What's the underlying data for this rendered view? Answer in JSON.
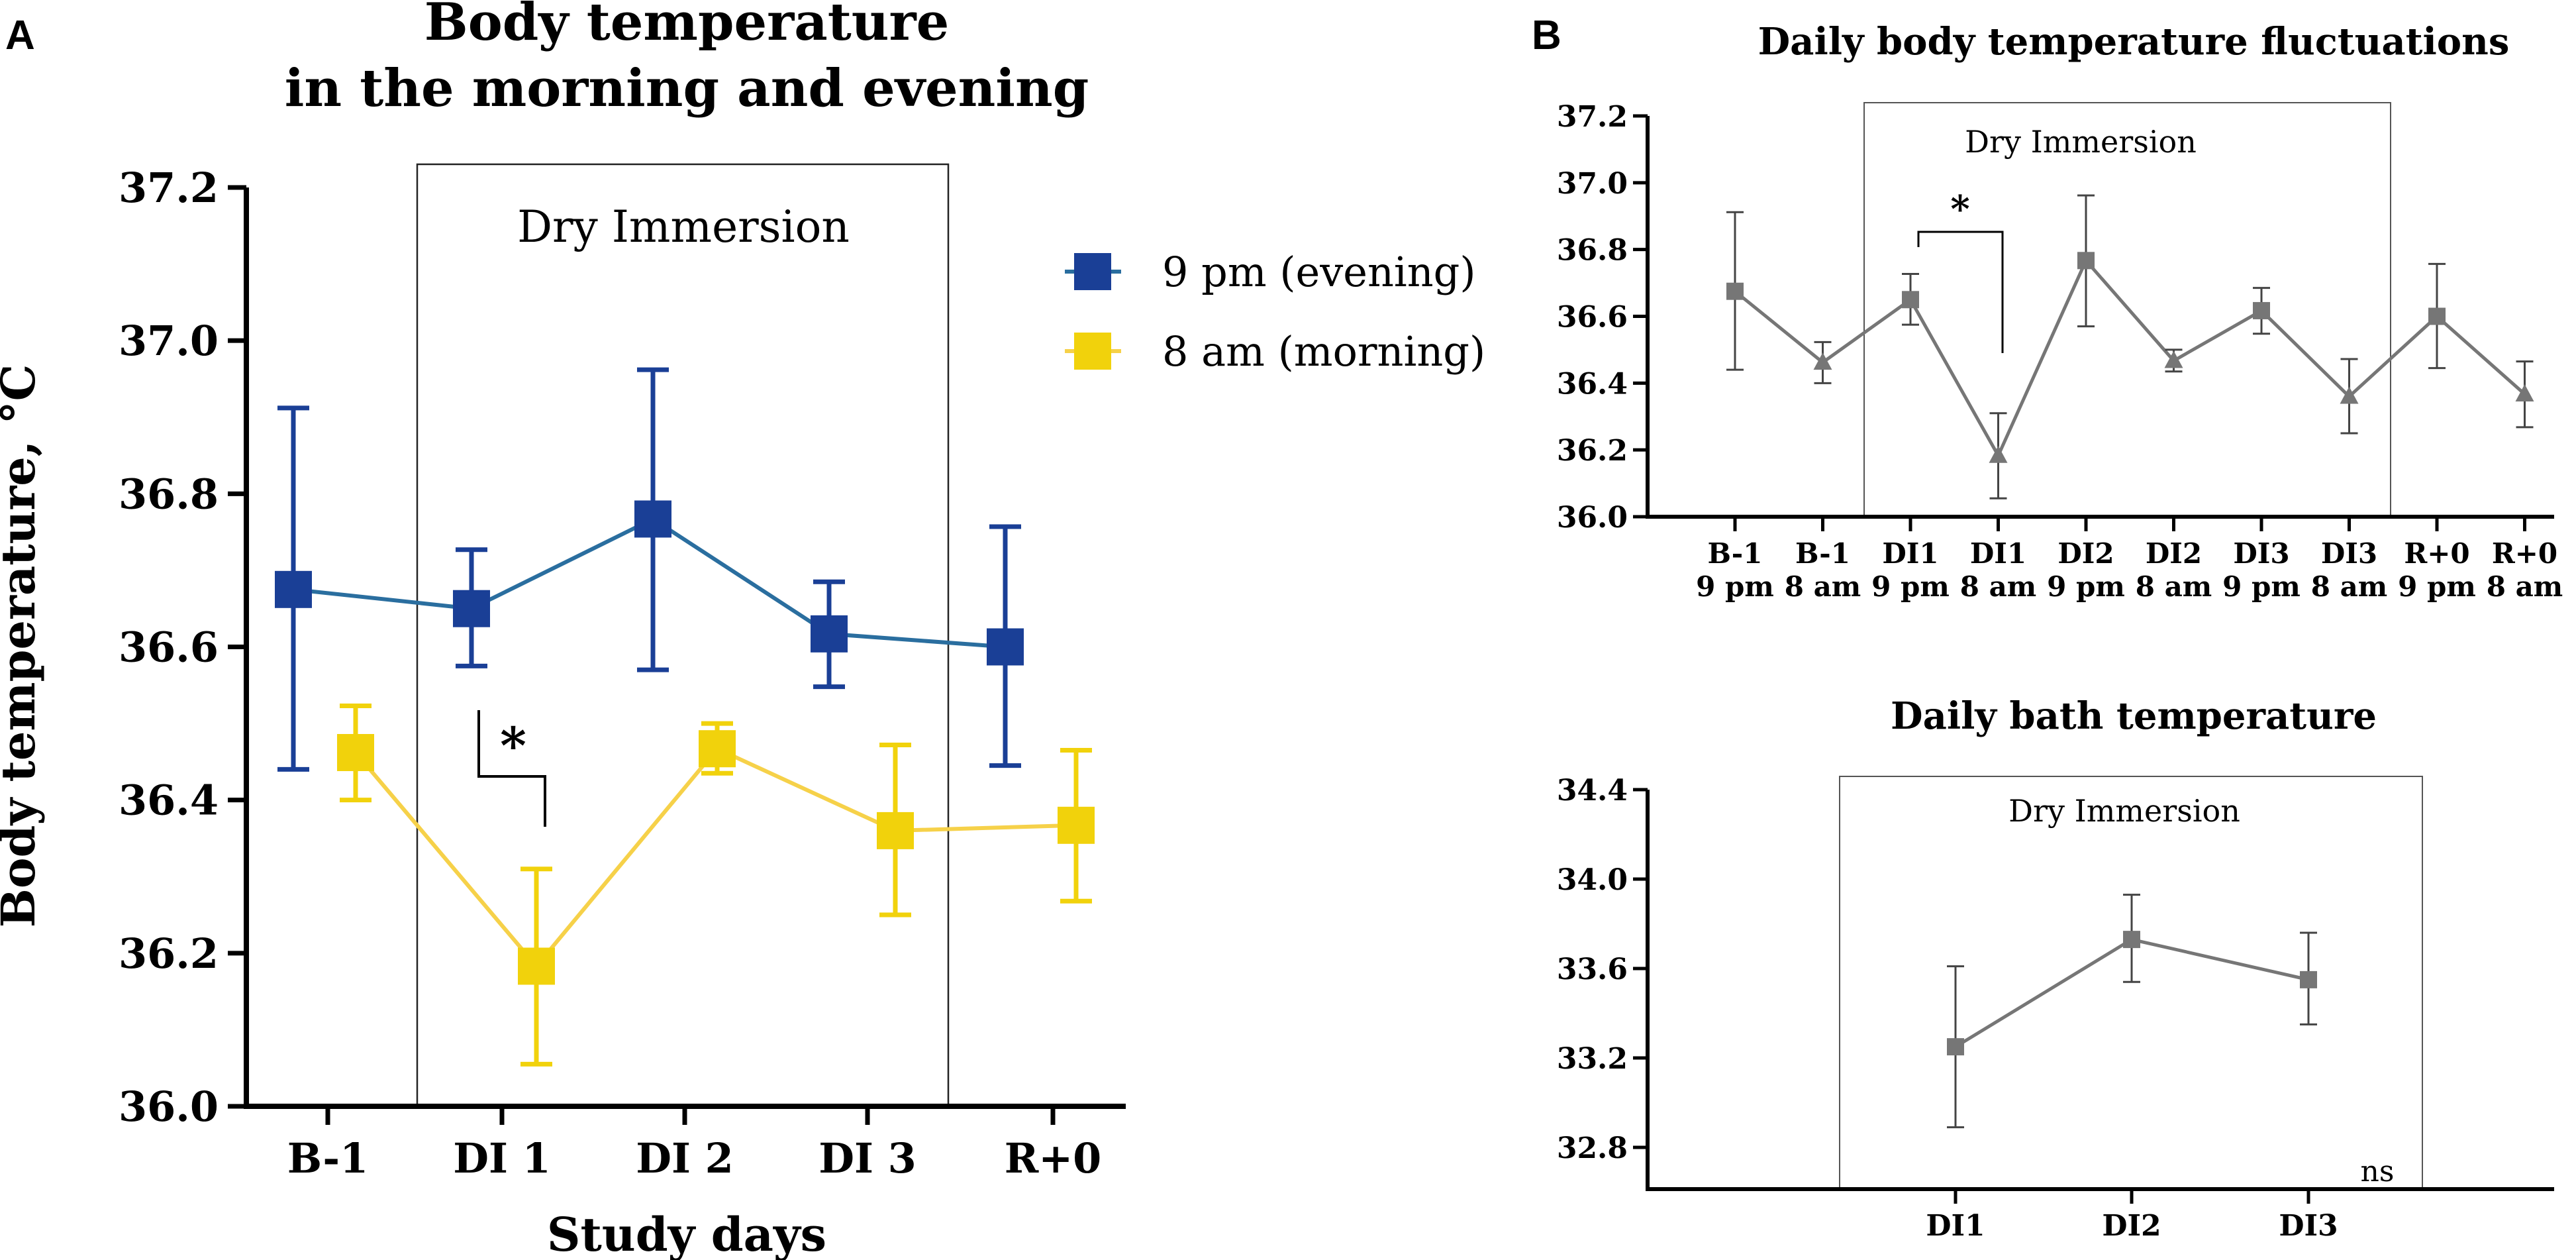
{
  "panels": {
    "A": {
      "letter": "A",
      "title_line1": "Body temperature",
      "title_line2": "in the morning and evening",
      "xlabel": "Study days",
      "ylabel": "Body temperature, °C",
      "box_label": "Dry Immersion",
      "significance": "*"
    },
    "B": {
      "letter": "B"
    }
  },
  "colors": {
    "evening": "#1a3f96",
    "evening_line": "#2a6e9f",
    "morning": "#f1d20c",
    "morning_line": "#f6d149",
    "gray": "#767676",
    "axis": "#000000"
  },
  "chart_data": [
    {
      "id": "A",
      "type": "line",
      "title": "Body temperature in the morning and evening",
      "xlabel": "Study days",
      "ylabel": "Body temperature, °C",
      "categories": [
        "B-1",
        "DI 1",
        "DI 2",
        "DI 3",
        "R+0"
      ],
      "ylim": [
        36.0,
        37.2
      ],
      "yticks": [
        "36.0",
        "36.2",
        "36.4",
        "36.6",
        "36.8",
        "37.0",
        "37.2"
      ],
      "legend_position": "top-right",
      "series": [
        {
          "name": "9 pm (evening)",
          "x": [
            0,
            1,
            2,
            3,
            4
          ],
          "values": [
            36.675,
            36.65,
            36.767,
            36.617,
            36.6
          ],
          "err_low": [
            36.44,
            36.575,
            36.57,
            36.548,
            36.445
          ],
          "err_high": [
            36.912,
            36.727,
            36.962,
            36.685,
            36.757
          ],
          "color_key": "evening"
        },
        {
          "name": "8 am (morning)",
          "x": [
            0.3,
            1.3,
            2.3,
            3.3,
            4.3
          ],
          "values": [
            36.462,
            36.183,
            36.467,
            36.36,
            36.367
          ],
          "err_low": [
            36.4,
            36.055,
            36.435,
            36.25,
            36.268
          ],
          "err_high": [
            36.523,
            36.31,
            36.5,
            36.472,
            36.465
          ],
          "color_key": "morning"
        }
      ],
      "annotations": [
        {
          "text": "Dry Immersion",
          "x_start": 0.7,
          "x_end": 3.7
        },
        {
          "text": "*",
          "between": [
            "DI 1 9 pm",
            "DI 1 8 am"
          ]
        }
      ]
    },
    {
      "id": "B_top",
      "type": "line",
      "title": "Daily body temperature fluctuations",
      "categories": [
        {
          "line1": "B-1",
          "line2": "9 pm"
        },
        {
          "line1": "B-1",
          "line2": "8 am"
        },
        {
          "line1": "DI1",
          "line2": "9 pm"
        },
        {
          "line1": "DI1",
          "line2": "8 am"
        },
        {
          "line1": "DI2",
          "line2": "9 pm"
        },
        {
          "line1": "DI2",
          "line2": "8 am"
        },
        {
          "line1": "DI3",
          "line2": "9 pm"
        },
        {
          "line1": "DI3",
          "line2": "8 am"
        },
        {
          "line1": "R+0",
          "line2": "9 pm"
        },
        {
          "line1": "R+0",
          "line2": "8 am"
        }
      ],
      "ylim": [
        36.0,
        37.2
      ],
      "yticks": [
        "36.0",
        "36.2",
        "36.4",
        "36.6",
        "36.8",
        "37.0",
        "37.2"
      ],
      "values": [
        36.675,
        36.462,
        36.65,
        36.183,
        36.767,
        36.467,
        36.617,
        36.36,
        36.6,
        36.367
      ],
      "err_low": [
        36.44,
        36.4,
        36.575,
        36.055,
        36.57,
        36.435,
        36.548,
        36.25,
        36.445,
        36.268
      ],
      "err_high": [
        36.912,
        36.523,
        36.727,
        36.31,
        36.962,
        36.5,
        36.685,
        36.472,
        36.757,
        36.465
      ],
      "markers": [
        "square",
        "triangle",
        "square",
        "triangle",
        "square",
        "triangle",
        "square",
        "triangle",
        "square",
        "triangle"
      ],
      "annotations": [
        {
          "text": "Dry Immersion",
          "x_start": 1.5,
          "x_end": 7.5
        },
        {
          "text": "*",
          "between": [
            "DI1 9 pm",
            "DI1 8 am"
          ]
        }
      ]
    },
    {
      "id": "B_bottom",
      "type": "line",
      "title": "Daily bath temperature",
      "categories": [
        "DI1",
        "DI2",
        "DI3"
      ],
      "ylim": [
        32.6,
        34.4
      ],
      "yticks": [
        "32.8",
        "33.2",
        "33.6",
        "34.0",
        "34.4"
      ],
      "values": [
        33.25,
        33.73,
        33.55
      ],
      "err_low": [
        32.89,
        33.54,
        33.35
      ],
      "err_high": [
        33.61,
        33.93,
        33.76
      ],
      "annotations": [
        {
          "text": "Dry Immersion"
        },
        {
          "text": "ns"
        }
      ]
    }
  ]
}
